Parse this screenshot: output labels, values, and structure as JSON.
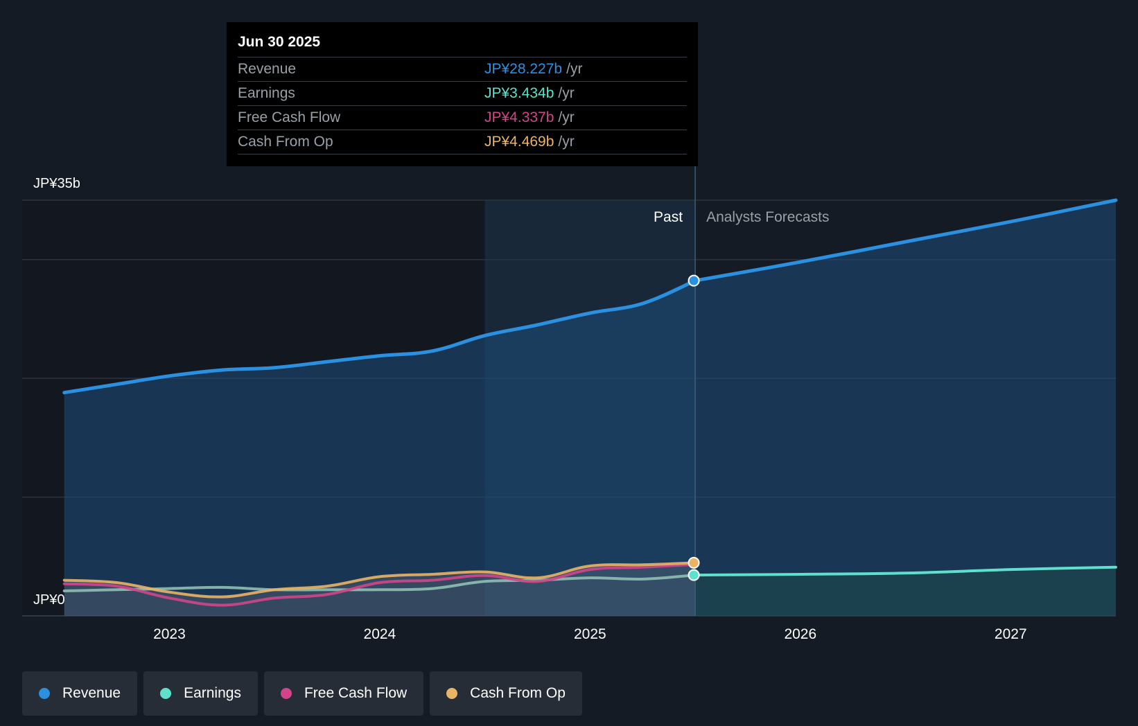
{
  "chart_data": {
    "type": "line",
    "currency_note": "JP¥",
    "y_labels": {
      "top": "JP¥35b",
      "bottom": "JP¥0"
    },
    "ylim": [
      0,
      35
    ],
    "x_ticks": [
      {
        "label": "2023",
        "x": 2023.0
      },
      {
        "label": "2024",
        "x": 2024.0
      },
      {
        "label": "2025",
        "x": 2025.0
      },
      {
        "label": "2026",
        "x": 2026.0
      },
      {
        "label": "2027",
        "x": 2027.0
      }
    ],
    "xlim": [
      2022.3,
      2027.5
    ],
    "past_start": 2022.5,
    "highlight_start": 2024.5,
    "divider_x": 2025.5,
    "past_label": "Past",
    "forecast_label": "Analysts Forecasts",
    "series": [
      {
        "name": "Revenue",
        "color": "#2b90e0",
        "points": [
          [
            2022.5,
            18.8
          ],
          [
            2022.75,
            19.5
          ],
          [
            2023.0,
            20.2
          ],
          [
            2023.25,
            20.7
          ],
          [
            2023.5,
            20.9
          ],
          [
            2023.75,
            21.4
          ],
          [
            2024.0,
            21.9
          ],
          [
            2024.25,
            22.3
          ],
          [
            2024.5,
            23.6
          ],
          [
            2024.75,
            24.5
          ],
          [
            2025.0,
            25.5
          ],
          [
            2025.25,
            26.3
          ],
          [
            2025.5,
            28.227
          ]
        ],
        "forecast": [
          [
            2025.5,
            28.227
          ],
          [
            2026.0,
            29.8
          ],
          [
            2026.5,
            31.5
          ],
          [
            2027.0,
            33.2
          ],
          [
            2027.5,
            35.0
          ]
        ]
      },
      {
        "name": "Earnings",
        "color": "#5ee0cc",
        "points": [
          [
            2022.5,
            2.1
          ],
          [
            2022.75,
            2.2
          ],
          [
            2023.0,
            2.3
          ],
          [
            2023.25,
            2.4
          ],
          [
            2023.5,
            2.2
          ],
          [
            2023.75,
            2.2
          ],
          [
            2024.0,
            2.2
          ],
          [
            2024.25,
            2.3
          ],
          [
            2024.5,
            2.9
          ],
          [
            2024.75,
            3.0
          ],
          [
            2025.0,
            3.2
          ],
          [
            2025.25,
            3.1
          ],
          [
            2025.5,
            3.434
          ]
        ],
        "forecast": [
          [
            2025.5,
            3.434
          ],
          [
            2026.0,
            3.5
          ],
          [
            2026.5,
            3.6
          ],
          [
            2027.0,
            3.9
          ],
          [
            2027.5,
            4.1
          ]
        ]
      },
      {
        "name": "Free Cash Flow",
        "color": "#d2458a",
        "points": [
          [
            2022.5,
            2.7
          ],
          [
            2022.75,
            2.5
          ],
          [
            2023.0,
            1.5
          ],
          [
            2023.25,
            0.9
          ],
          [
            2023.5,
            1.5
          ],
          [
            2023.75,
            1.8
          ],
          [
            2024.0,
            2.8
          ],
          [
            2024.25,
            3.0
          ],
          [
            2024.5,
            3.4
          ],
          [
            2024.75,
            2.9
          ],
          [
            2025.0,
            3.9
          ],
          [
            2025.25,
            4.1
          ],
          [
            2025.5,
            4.337
          ]
        ],
        "forecast": []
      },
      {
        "name": "Cash From Op",
        "color": "#e9b466",
        "points": [
          [
            2022.5,
            3.0
          ],
          [
            2022.75,
            2.8
          ],
          [
            2023.0,
            2.0
          ],
          [
            2023.25,
            1.6
          ],
          [
            2023.5,
            2.2
          ],
          [
            2023.75,
            2.5
          ],
          [
            2024.0,
            3.3
          ],
          [
            2024.25,
            3.5
          ],
          [
            2024.5,
            3.7
          ],
          [
            2024.75,
            3.2
          ],
          [
            2025.0,
            4.2
          ],
          [
            2025.25,
            4.3
          ],
          [
            2025.5,
            4.469
          ]
        ],
        "forecast": []
      }
    ]
  },
  "tooltip": {
    "date": "Jun 30 2025",
    "unit": "/yr",
    "rows": [
      {
        "label": "Revenue",
        "value": "JP¥28.227b",
        "color": "#2b90e0"
      },
      {
        "label": "Earnings",
        "value": "JP¥3.434b",
        "color": "#5ee0cc"
      },
      {
        "label": "Free Cash Flow",
        "value": "JP¥4.337b",
        "color": "#d2458a"
      },
      {
        "label": "Cash From Op",
        "value": "JP¥4.469b",
        "color": "#e9b466"
      }
    ]
  },
  "legend": [
    {
      "label": "Revenue",
      "color": "#2b90e0"
    },
    {
      "label": "Earnings",
      "color": "#5ee0cc"
    },
    {
      "label": "Free Cash Flow",
      "color": "#d2458a"
    },
    {
      "label": "Cash From Op",
      "color": "#e9b466"
    }
  ]
}
